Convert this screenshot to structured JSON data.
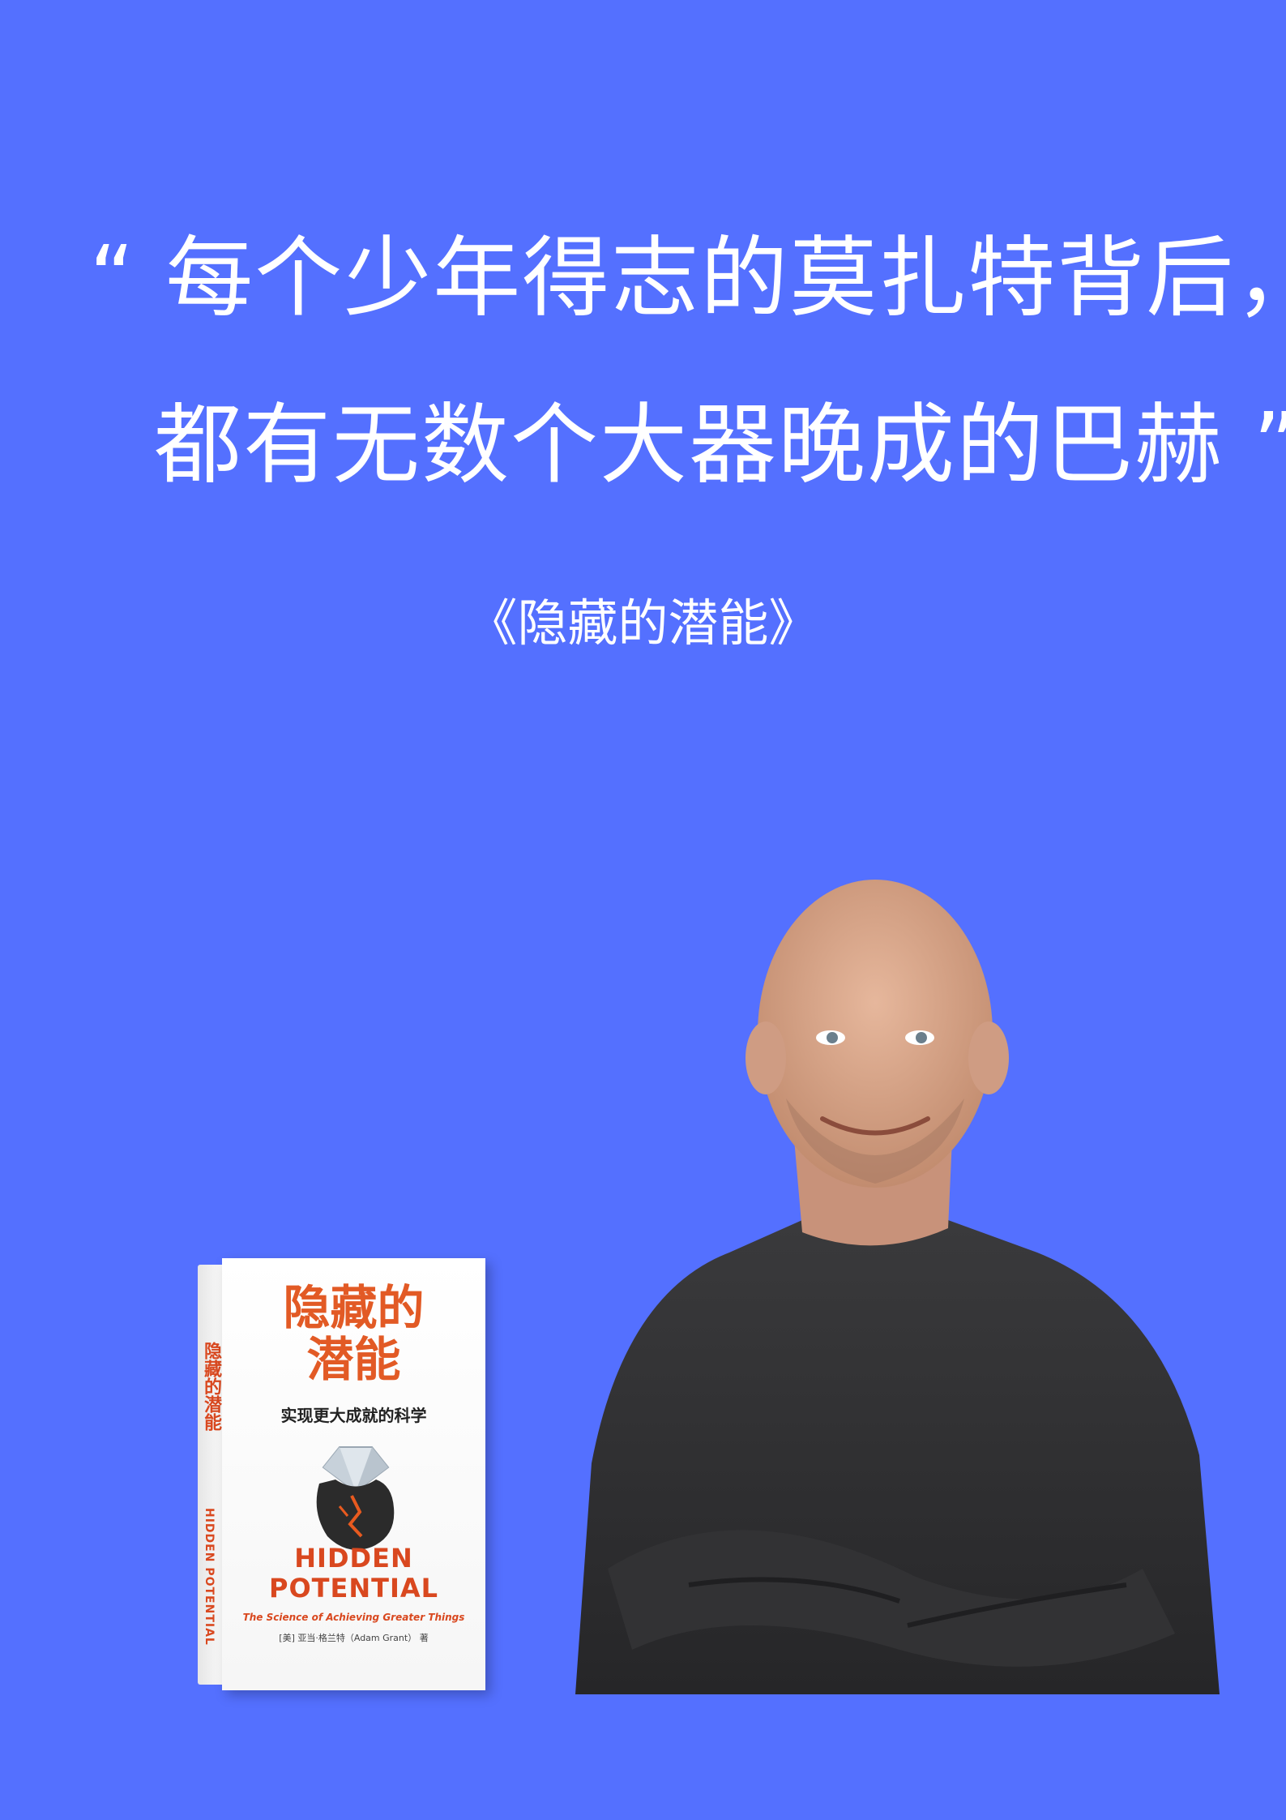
{
  "quote": {
    "line1": "“ 每个少年得志的莫扎特背后，",
    "line2": "都有无数个大器晚成的巴赫 ”"
  },
  "book_title": "《隐藏的潜能》",
  "cover": {
    "cn_title": "隐藏的\n潜能",
    "subtitle": "实现更大成就的科学",
    "en_title": "HIDDEN\nPOTENTIAL",
    "en_subtitle": "The Science of Achieving Greater Things",
    "author": "[美] 亚当·格兰特（Adam Grant） 著",
    "spine_title": "隐藏的潜能",
    "spine_en": "HIDDEN POTENTIAL"
  },
  "colors": {
    "background": "#5470ff",
    "text": "#ffffff",
    "cover_accent": "#e25a25"
  }
}
